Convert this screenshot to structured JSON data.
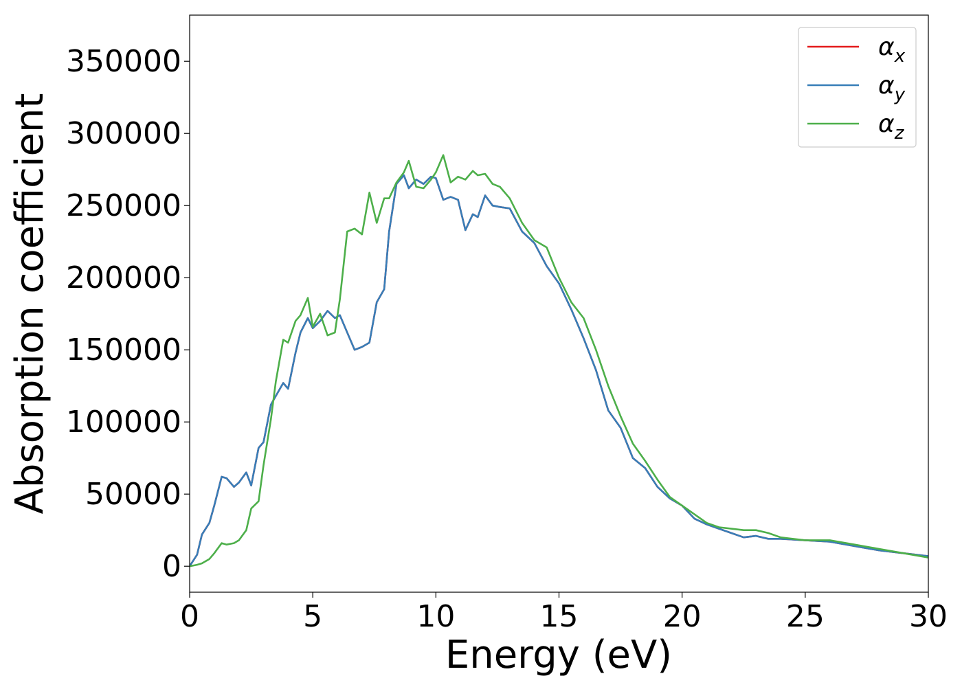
{
  "chart_data": {
    "type": "line",
    "title": "",
    "xlabel": "Energy (eV)",
    "ylabel": "Absorption coefficient",
    "xlim": [
      0,
      30
    ],
    "ylim": [
      -18000,
      382000
    ],
    "xticks": [
      0,
      5,
      10,
      15,
      20,
      25,
      30
    ],
    "yticks": [
      0,
      50000,
      100000,
      150000,
      200000,
      250000,
      300000,
      350000
    ],
    "grid": false,
    "legend_position": "top-right",
    "series": [
      {
        "name": "α_x",
        "legend_base": "α",
        "legend_sub": "x",
        "color": "#e41a1c",
        "x": [
          0,
          0.3,
          0.5,
          0.8,
          1.0,
          1.3,
          1.5,
          1.8,
          2.0,
          2.3,
          2.5,
          2.8,
          3.0,
          3.3,
          3.5,
          3.8,
          4.0,
          4.3,
          4.5,
          4.8,
          5.0,
          5.3,
          5.6,
          5.9,
          6.1,
          6.4,
          6.7,
          7.0,
          7.3,
          7.6,
          7.9,
          8.1,
          8.4,
          8.7,
          8.9,
          9.2,
          9.5,
          9.8,
          10.0,
          10.3,
          10.6,
          10.9,
          11.2,
          11.5,
          11.7,
          12.0,
          12.3,
          12.6,
          13.0,
          13.5,
          14.0,
          14.5,
          15.0,
          15.5,
          16.0,
          16.5,
          17.0,
          17.5,
          18.0,
          18.5,
          19.0,
          19.5,
          20.0,
          20.5,
          21.0,
          21.5,
          22.0,
          22.5,
          23.0,
          23.5,
          24.0,
          25.0,
          26.0,
          27.0,
          28.0,
          29.0,
          30.0
        ],
        "values": [
          0,
          8000,
          22000,
          30000,
          42000,
          62000,
          61000,
          55000,
          58000,
          65000,
          56000,
          82000,
          86000,
          112000,
          118000,
          127000,
          123000,
          148000,
          162000,
          172000,
          165000,
          170000,
          177000,
          172000,
          174000,
          162000,
          150000,
          152000,
          155000,
          183000,
          192000,
          232000,
          265000,
          271000,
          262000,
          268000,
          265000,
          270000,
          269000,
          254000,
          256000,
          254000,
          233000,
          244000,
          242000,
          257000,
          250000,
          249000,
          248000,
          232000,
          224000,
          208000,
          196000,
          178000,
          158000,
          136000,
          108000,
          96000,
          75000,
          68000,
          55000,
          47000,
          42000,
          33000,
          29000,
          26000,
          23000,
          20000,
          21000,
          19000,
          19000,
          18000,
          17000,
          14000,
          11000,
          9000,
          7000
        ]
      },
      {
        "name": "α_y",
        "legend_base": "α",
        "legend_sub": "y",
        "color": "#377eb8",
        "x": [
          0,
          0.3,
          0.5,
          0.8,
          1.0,
          1.3,
          1.5,
          1.8,
          2.0,
          2.3,
          2.5,
          2.8,
          3.0,
          3.3,
          3.5,
          3.8,
          4.0,
          4.3,
          4.5,
          4.8,
          5.0,
          5.3,
          5.6,
          5.9,
          6.1,
          6.4,
          6.7,
          7.0,
          7.3,
          7.6,
          7.9,
          8.1,
          8.4,
          8.7,
          8.9,
          9.2,
          9.5,
          9.8,
          10.0,
          10.3,
          10.6,
          10.9,
          11.2,
          11.5,
          11.7,
          12.0,
          12.3,
          12.6,
          13.0,
          13.5,
          14.0,
          14.5,
          15.0,
          15.5,
          16.0,
          16.5,
          17.0,
          17.5,
          18.0,
          18.5,
          19.0,
          19.5,
          20.0,
          20.5,
          21.0,
          21.5,
          22.0,
          22.5,
          23.0,
          23.5,
          24.0,
          25.0,
          26.0,
          27.0,
          28.0,
          29.0,
          30.0
        ],
        "values": [
          0,
          8000,
          22000,
          30000,
          42000,
          62000,
          61000,
          55000,
          58000,
          65000,
          56000,
          82000,
          86000,
          112000,
          118000,
          127000,
          123000,
          148000,
          162000,
          172000,
          165000,
          170000,
          177000,
          172000,
          174000,
          162000,
          150000,
          152000,
          155000,
          183000,
          192000,
          232000,
          265000,
          271000,
          262000,
          268000,
          265000,
          270000,
          269000,
          254000,
          256000,
          254000,
          233000,
          244000,
          242000,
          257000,
          250000,
          249000,
          248000,
          232000,
          224000,
          208000,
          196000,
          178000,
          158000,
          136000,
          108000,
          96000,
          75000,
          68000,
          55000,
          47000,
          42000,
          33000,
          29000,
          26000,
          23000,
          20000,
          21000,
          19000,
          19000,
          18000,
          17000,
          14000,
          11000,
          9000,
          7000
        ]
      },
      {
        "name": "α_z",
        "legend_base": "α",
        "legend_sub": "z",
        "color": "#4daf4a",
        "x": [
          0,
          0.3,
          0.5,
          0.8,
          1.0,
          1.3,
          1.5,
          1.8,
          2.0,
          2.3,
          2.5,
          2.8,
          3.0,
          3.3,
          3.5,
          3.8,
          4.0,
          4.3,
          4.5,
          4.8,
          5.0,
          5.3,
          5.6,
          5.9,
          6.1,
          6.4,
          6.7,
          7.0,
          7.3,
          7.6,
          7.9,
          8.1,
          8.4,
          8.7,
          8.9,
          9.2,
          9.5,
          9.8,
          10.0,
          10.3,
          10.6,
          10.9,
          11.2,
          11.5,
          11.7,
          12.0,
          12.3,
          12.6,
          13.0,
          13.5,
          14.0,
          14.5,
          15.0,
          15.5,
          16.0,
          16.5,
          17.0,
          17.5,
          18.0,
          18.5,
          19.0,
          19.5,
          20.0,
          20.5,
          21.0,
          21.5,
          22.0,
          22.5,
          23.0,
          23.5,
          24.0,
          25.0,
          26.0,
          27.0,
          28.0,
          29.0,
          30.0
        ],
        "values": [
          0,
          1000,
          2000,
          5000,
          9000,
          16000,
          15000,
          16000,
          18000,
          25000,
          40000,
          45000,
          70000,
          102000,
          128000,
          157000,
          155000,
          170000,
          174000,
          186000,
          166000,
          175000,
          160000,
          162000,
          185000,
          232000,
          234000,
          230000,
          259000,
          238000,
          255000,
          255000,
          266000,
          273000,
          281000,
          263000,
          262000,
          268000,
          273000,
          285000,
          266000,
          270000,
          268000,
          274000,
          271000,
          272000,
          265000,
          263000,
          255000,
          238000,
          226000,
          221000,
          200000,
          183000,
          172000,
          150000,
          125000,
          104000,
          85000,
          73000,
          60000,
          48000,
          42000,
          36000,
          30000,
          27000,
          26000,
          25000,
          25000,
          23000,
          20000,
          18000,
          18000,
          15000,
          12000,
          9000,
          6000
        ]
      }
    ]
  }
}
